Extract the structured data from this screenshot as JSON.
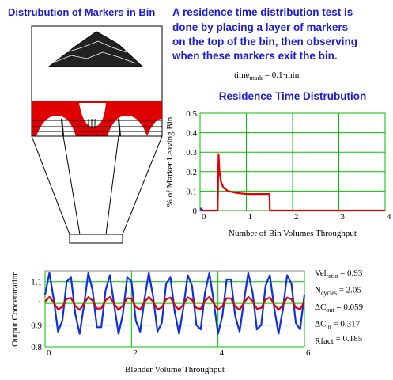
{
  "header": {
    "left_title": "Distrubution of Markers in Bin",
    "description_lines": [
      "A residence time distribution test is",
      "done by placing a layer of markers",
      "on the top of the bin, then observing",
      "when these markers exit the bin."
    ]
  },
  "time_mark": {
    "name": "time",
    "sub": "mark",
    "text": " = 0.1·min"
  },
  "parameters": [
    {
      "name": "Vel",
      "sub": "ratio",
      "text": " = 0.93"
    },
    {
      "name": "N",
      "sub": "cycles",
      "text": " = 2.05"
    },
    {
      "name": "ΔC",
      "sub": "out",
      "text": " = 0.059"
    },
    {
      "name": "ΔC",
      "sub": "in",
      "text": " = 0.317"
    },
    {
      "name": "Rfact",
      "sub": "",
      "text": " = 0.185"
    }
  ],
  "chart_data": [
    {
      "type": "line",
      "title": "Residence Time Distrubution",
      "x_label": "Number of Bin Volumes Throughput",
      "y_label": "% of Marker Leaving Bin",
      "xlim": [
        0,
        4
      ],
      "ylim": [
        0,
        0.5
      ],
      "xticks": [
        0,
        1,
        2,
        3,
        4
      ],
      "yticks": [
        0,
        0.1,
        0.2,
        0.3,
        0.4,
        0.5
      ],
      "grid": true,
      "grid_color": "#00c000",
      "series": [
        {
          "color": "#e00000",
          "x": [
            0,
            0.38,
            0.4,
            0.42,
            0.45,
            0.5,
            0.6,
            0.8,
            1.0,
            1.2,
            1.5,
            1.51,
            1.6,
            2,
            3,
            4
          ],
          "values": [
            0,
            0,
            0.29,
            0.2,
            0.15,
            0.12,
            0.1,
            0.09,
            0.085,
            0.085,
            0.085,
            0,
            0,
            0,
            0,
            0
          ]
        },
        {
          "color": "#1030e0",
          "x": [
            0,
            0.03,
            0.06
          ],
          "values": [
            0.01,
            0.01,
            0
          ]
        }
      ]
    },
    {
      "type": "line",
      "x_label": "Blender Volume Throughput",
      "y_label": "Output Concentration",
      "xlim": [
        0,
        6
      ],
      "ylim": [
        0.8,
        1.15
      ],
      "xticks": [
        0,
        2,
        4,
        6
      ],
      "yticks": [
        0.8,
        0.9,
        1,
        1.1
      ],
      "grid": true,
      "grid_color": "#00c000",
      "x": [
        0,
        0.1,
        0.2,
        0.3,
        0.4,
        0.5,
        0.6,
        0.7,
        0.8,
        0.9,
        1.0,
        1.1,
        1.2,
        1.3,
        1.4,
        1.5,
        1.6,
        1.7,
        1.8,
        1.9,
        2.0,
        2.1,
        2.2,
        2.3,
        2.4,
        2.5,
        2.6,
        2.7,
        2.8,
        2.9,
        3.0,
        3.1,
        3.2,
        3.3,
        3.4,
        3.5,
        3.6,
        3.7,
        3.8,
        3.9,
        4.0,
        4.1,
        4.2,
        4.3,
        4.4,
        4.5,
        4.6,
        4.7,
        4.8,
        4.9,
        5.0,
        5.1,
        5.2,
        5.3,
        5.4,
        5.5,
        5.6,
        5.7,
        5.8,
        5.9,
        6.0
      ],
      "series": [
        {
          "color": "#1030e0",
          "values": [
            1.04,
            1.14,
            1.02,
            0.87,
            0.92,
            1.1,
            1.12,
            0.95,
            0.86,
            0.99,
            1.14,
            1.06,
            0.89,
            0.89,
            1.06,
            1.13,
            0.99,
            0.86,
            0.95,
            1.12,
            1.1,
            0.92,
            0.87,
            1.02,
            1.14,
            1.03,
            0.87,
            0.91,
            1.09,
            1.12,
            0.96,
            0.86,
            0.98,
            1.13,
            1.08,
            0.9,
            0.88,
            1.05,
            1.14,
            1.01,
            0.86,
            0.94,
            1.11,
            1.11,
            0.94,
            0.87,
            1.01,
            1.14,
            1.05,
            0.88,
            0.9,
            1.08,
            1.13,
            0.98,
            0.86,
            0.97,
            1.13,
            1.09,
            0.91,
            0.88,
            1.04
          ]
        },
        {
          "color": "#e00000",
          "values": [
            1.008,
            1.03,
            1.004,
            0.972,
            0.984,
            1.021,
            1.025,
            0.989,
            0.97,
            0.999,
            1.029,
            1.013,
            0.976,
            0.977,
            1.014,
            1.029,
            0.998,
            0.97,
            0.99,
            1.025,
            1.021,
            0.983,
            0.972,
            1.005,
            1.03,
            1.007,
            0.973,
            0.981,
            1.019,
            1.027,
            0.992,
            0.97,
            0.996,
            1.028,
            1.016,
            0.979,
            0.975,
            1.011,
            1.03,
            1.001,
            0.971,
            0.987,
            1.024,
            1.023,
            0.986,
            0.971,
            1.002,
            1.03,
            1.01,
            0.975,
            0.979,
            1.017,
            1.028,
            0.995,
            0.97,
            0.993,
            1.027,
            1.019,
            0.981,
            0.973,
            1.008
          ]
        }
      ]
    }
  ]
}
